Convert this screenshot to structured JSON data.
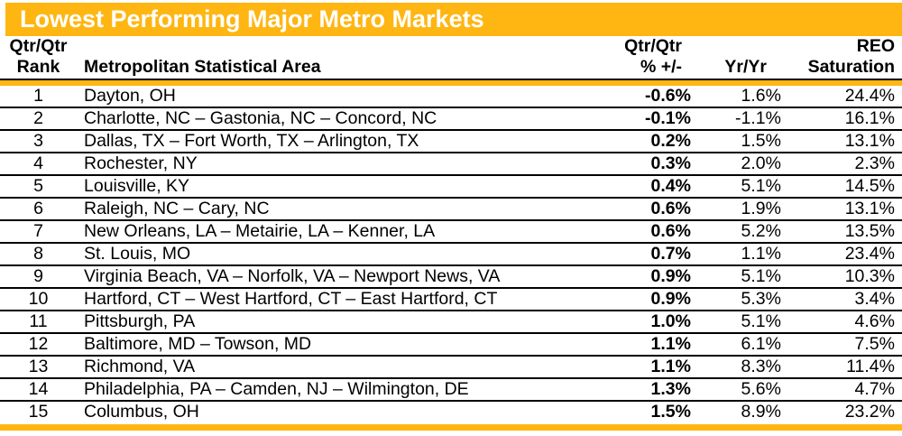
{
  "title": "Lowest Performing Major Metro Markets",
  "colors": {
    "accent_gold": "#FFB612",
    "title_text": "#FFFFFF",
    "row_line": "#000000"
  },
  "chart_data": {
    "type": "table",
    "title": "Lowest Performing Major Metro Markets",
    "columns": [
      "Qtr/Qtr Rank",
      "Metropolitan Statistical Area",
      "Qtr/Qtr % +/-",
      "Yr/Yr",
      "REO Saturation"
    ],
    "header_lines": {
      "rank": [
        "Qtr/Qtr",
        "Rank"
      ],
      "msa": [
        "",
        "Metropolitan Statistical Area"
      ],
      "qtr": [
        "Qtr/Qtr",
        "% +/-"
      ],
      "yr": [
        "",
        "Yr/Yr"
      ],
      "reo": [
        "REO",
        "Saturation"
      ]
    },
    "rows": [
      {
        "rank": "1",
        "msa": "Dayton, OH",
        "qtr": "-0.6%",
        "yr": "1.6%",
        "reo": "24.4%"
      },
      {
        "rank": "2",
        "msa": "Charlotte, NC – Gastonia, NC – Concord, NC",
        "qtr": "-0.1%",
        "yr": "-1.1%",
        "reo": "16.1%"
      },
      {
        "rank": "3",
        "msa": "Dallas, TX – Fort Worth, TX – Arlington, TX",
        "qtr": "0.2%",
        "yr": "1.5%",
        "reo": "13.1%"
      },
      {
        "rank": "4",
        "msa": "Rochester, NY",
        "qtr": "0.3%",
        "yr": "2.0%",
        "reo": "2.3%"
      },
      {
        "rank": "5",
        "msa": "Louisville, KY",
        "qtr": "0.4%",
        "yr": "5.1%",
        "reo": "14.5%"
      },
      {
        "rank": "6",
        "msa": "Raleigh, NC – Cary, NC",
        "qtr": "0.6%",
        "yr": "1.9%",
        "reo": "13.1%"
      },
      {
        "rank": "7",
        "msa": "New Orleans, LA – Metairie, LA – Kenner, LA",
        "qtr": "0.6%",
        "yr": "5.2%",
        "reo": "13.5%"
      },
      {
        "rank": "8",
        "msa": "St. Louis, MO",
        "qtr": "0.7%",
        "yr": "1.1%",
        "reo": "23.4%"
      },
      {
        "rank": "9",
        "msa": "Virginia Beach, VA – Norfolk, VA – Newport News, VA",
        "qtr": "0.9%",
        "yr": "5.1%",
        "reo": "10.3%"
      },
      {
        "rank": "10",
        "msa": "Hartford, CT – West Hartford, CT – East Hartford, CT",
        "qtr": "0.9%",
        "yr": "5.3%",
        "reo": "3.4%"
      },
      {
        "rank": "11",
        "msa": "Pittsburgh, PA",
        "qtr": "1.0%",
        "yr": "5.1%",
        "reo": "4.6%"
      },
      {
        "rank": "12",
        "msa": "Baltimore, MD – Towson, MD",
        "qtr": "1.1%",
        "yr": "6.1%",
        "reo": "7.5%"
      },
      {
        "rank": "13",
        "msa": "Richmond, VA",
        "qtr": "1.1%",
        "yr": "8.3%",
        "reo": "11.4%"
      },
      {
        "rank": "14",
        "msa": "Philadelphia, PA – Camden, NJ – Wilmington, DE",
        "qtr": "1.3%",
        "yr": "5.6%",
        "reo": "4.7%"
      },
      {
        "rank": "15",
        "msa": "Columbus, OH",
        "qtr": "1.5%",
        "yr": "8.9%",
        "reo": "23.2%"
      }
    ]
  }
}
